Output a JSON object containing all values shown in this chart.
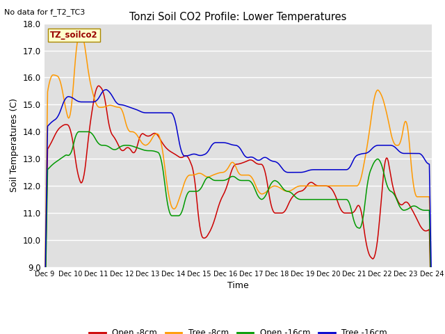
{
  "title": "Tonzi Soil CO2 Profile: Lower Temperatures",
  "subtitle": "No data for f_T2_TC3",
  "xlabel": "Time",
  "ylabel": "Soil Temperatures (C)",
  "ylim": [
    9.0,
    18.0
  ],
  "yticks": [
    9.0,
    10.0,
    11.0,
    12.0,
    13.0,
    14.0,
    15.0,
    16.0,
    17.0,
    18.0
  ],
  "xtick_labels": [
    "Dec 9",
    "Dec 10",
    "Dec 11",
    "Dec 12",
    "Dec 13",
    "Dec 14",
    "Dec 15",
    "Dec 16",
    "Dec 17",
    "Dec 18",
    "Dec 19",
    "Dec 20",
    "Dec 21",
    "Dec 22",
    "Dec 23",
    "Dec 24"
  ],
  "annotation": "TZ_soilco2",
  "legend": [
    "Open -8cm",
    "Tree -8cm",
    "Open -16cm",
    "Tree -16cm"
  ],
  "colors": {
    "open8": "#cc0000",
    "tree8": "#ff9900",
    "open16": "#009900",
    "tree16": "#0000cc"
  },
  "bg_color": "#e0e0e0",
  "grid_color": "#ffffff",
  "n_points": 500
}
